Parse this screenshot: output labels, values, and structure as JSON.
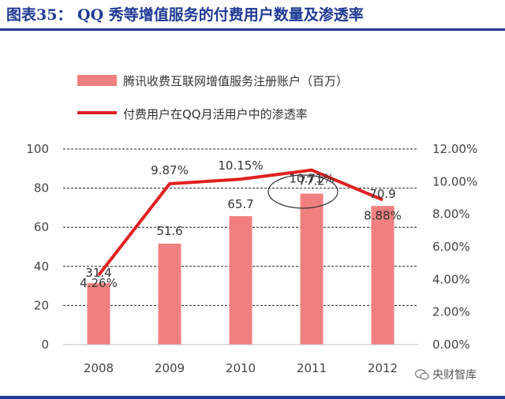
{
  "figure": {
    "title": "图表35： QQ 秀等增值服务的付费用户数量及渗透率",
    "brand_color": "#1f3a93"
  },
  "watermark": {
    "text": "央财智库",
    "icon": "wechat-icon"
  },
  "chart_data": {
    "type": "bar",
    "categories": [
      "2008",
      "2009",
      "2010",
      "2011",
      "2012"
    ],
    "series": [
      {
        "name": "腾讯收费互联网增值服务注册账户（百万）",
        "type": "bar",
        "axis": "left",
        "values": [
          31.4,
          51.6,
          65.7,
          77.2,
          70.9
        ],
        "value_labels": [
          "31.4",
          "51.6",
          "65.7",
          "77.2",
          "70.9"
        ],
        "color": "#f08080"
      },
      {
        "name": "付费用户在QQ月活用户中的渗透率",
        "type": "line",
        "axis": "right",
        "values": [
          4.26,
          9.87,
          10.15,
          10.71,
          8.88
        ],
        "value_labels": [
          "4.26%",
          "9.87%",
          "10.15%",
          "10.71%",
          "8.88%"
        ],
        "color": "#e02020"
      }
    ],
    "y_left": {
      "lim": [
        0,
        100
      ],
      "ticks": [
        "0",
        "20",
        "40",
        "60",
        "80",
        "100"
      ]
    },
    "y_right": {
      "lim": [
        0,
        12
      ],
      "ticks": [
        "0.00%",
        "2.00%",
        "4.00%",
        "6.00%",
        "8.00%",
        "10.00%",
        "12.00%"
      ]
    },
    "grid": true,
    "legend_position": "top",
    "annotation": "ellipse around 2011 labels"
  }
}
